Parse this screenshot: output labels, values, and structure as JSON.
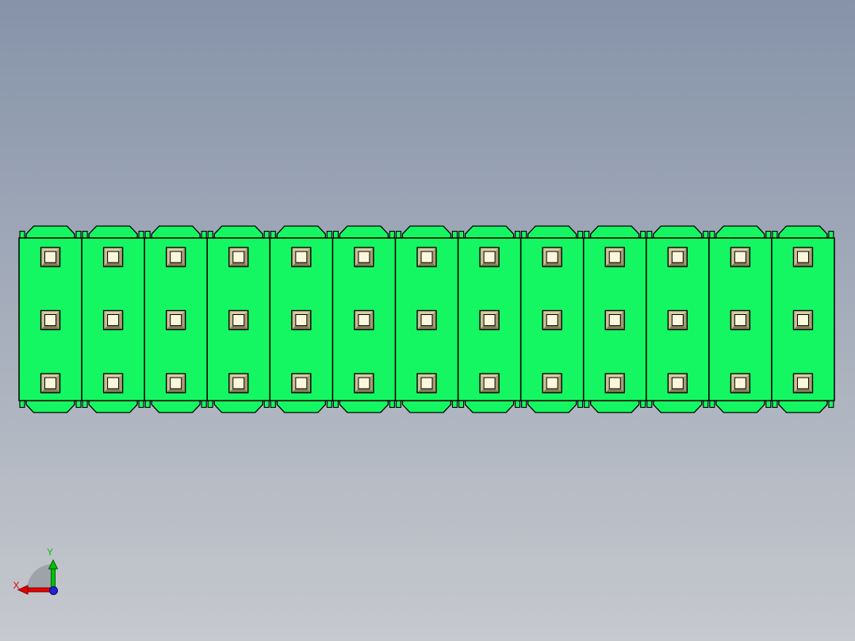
{
  "scene": {
    "type": "cad-viewport",
    "background": {
      "gradient_top": "#8693a9",
      "gradient_bottom": "#c6c9ce"
    }
  },
  "part": {
    "columns": 13,
    "rows": 3,
    "total_pins": 39,
    "colors": {
      "body": "#15f762",
      "outline": "#000000",
      "pin_frame_top": "#d8cda4",
      "pin_frame_left": "#cbc094",
      "pin_frame_right": "#a89d73",
      "pin_frame_bottom": "#867c57",
      "pin_center": "#fbf7dc"
    }
  },
  "axis_triad": {
    "x_label": "X",
    "y_label": "Y",
    "x_color": "#e60000",
    "x_dark": "#7c0000",
    "y_color": "#00c400",
    "y_dark": "#005a00",
    "z_color": "#2323d8",
    "z_dark": "#000060",
    "sector_color": "#9aa0a8"
  }
}
